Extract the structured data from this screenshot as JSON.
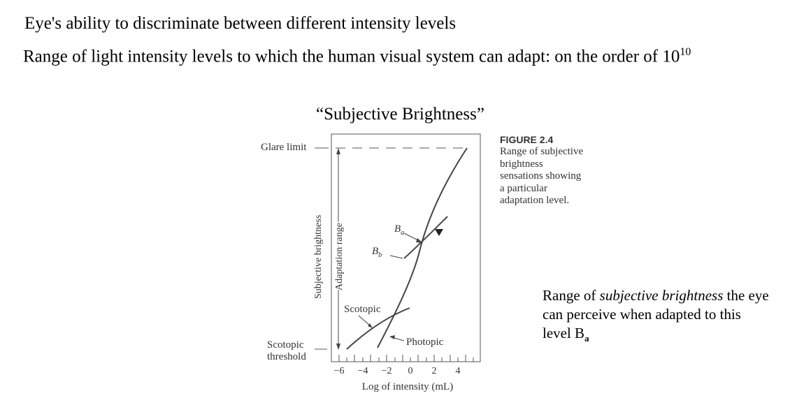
{
  "header": {
    "line1": "Eye's ability to discriminate between different intensity levels",
    "line2_text": "Range of light intensity levels to which the human visual system can adapt: on the order of 10",
    "line2_exponent": "10"
  },
  "figure": {
    "title": "“Subjective Brightness”",
    "glare_label": "Glare limit",
    "scotopic_threshold": [
      "Scotopic",
      "threshold"
    ],
    "y_label_outer": "Subjective brightness",
    "y_label_inner": "Adaptation range",
    "ba_label": "B",
    "ba_sub": "a",
    "bb_label": "B",
    "bb_sub": "b",
    "scotopic_label": "Scotopic",
    "photopic_label": "Photopic",
    "x_ticks": [
      "−6",
      "−4",
      "−2",
      "0",
      "2",
      "4"
    ],
    "x_label": "Log of intensity (mL)"
  },
  "caption": {
    "heading": "FIGURE 2.4",
    "body": "Range of subjective brightness sensations showing a particular adaptation level."
  },
  "note": {
    "pre": "Range of ",
    "italic": "subjective brightness",
    "post": " the eye can perceive when adapted to this level B",
    "sub": "a"
  }
}
